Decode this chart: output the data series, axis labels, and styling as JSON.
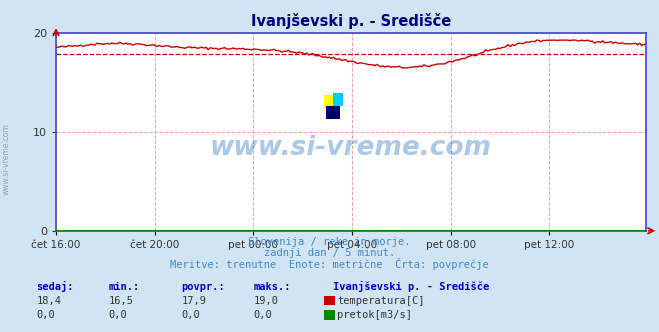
{
  "title": "Ivanjševski p. - Središče",
  "subtitle_lines": [
    "Slovenija / reke in morje.",
    "zadnji dan / 5 minut.",
    "Meritve: trenutne  Enote: metrične  Črta: povprečje"
  ],
  "bg_color": "#d0e4f4",
  "plot_bg_color": "#ffffff",
  "grid_color": "#f0a0a0",
  "axis_color": "#4444cc",
  "title_color": "#000080",
  "subtitle_color": "#4488cc",
  "stats_header_color": "#0000cc",
  "x_tick_labels": [
    "čet 16:00",
    "čet 20:00",
    "pet 00:00",
    "pet 04:00",
    "pet 08:00",
    "pet 12:00"
  ],
  "x_tick_positions": [
    0,
    48,
    96,
    144,
    192,
    240
  ],
  "ylim": [
    0,
    20
  ],
  "xlim": [
    0,
    287
  ],
  "yticks": [
    0,
    10,
    20
  ],
  "temp_color": "#cc0000",
  "avg_color": "#cc0000",
  "flow_color": "#008800",
  "temp_avg": 17.9,
  "stats_labels": [
    "sedaj:",
    "min.:",
    "povpr.:",
    "maks.:"
  ],
  "stats_temp": [
    "18,4",
    "16,5",
    "17,9",
    "19,0"
  ],
  "stats_flow": [
    "0,0",
    "0,0",
    "0,0",
    "0,0"
  ],
  "legend_station": "Ivanjševski p. - Središče",
  "legend_temp": "temperatura[C]",
  "legend_flow": "pretok[m3/s]",
  "watermark": "www.si-vreme.com"
}
